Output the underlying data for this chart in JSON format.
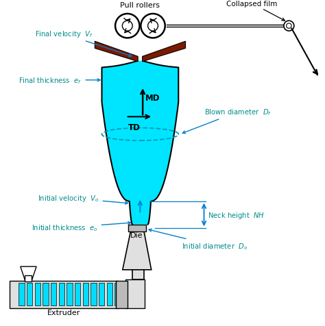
{
  "bg_color": "#ffffff",
  "cyan_color": "#00E5FF",
  "dark_red": "#7B1A00",
  "black": "#000000",
  "teal_label": "#008B8B",
  "blue_arrow": "#007FCC",
  "gray_light": "#E0E0E0",
  "gray_med": "#BBBBBB",
  "labels": {
    "pull_rollers": "Pull rollers",
    "collapsed_film": "Collapsed film",
    "final_velocity": "Final velocity  $V_f$",
    "final_thickness": "Final thickness  $e_f$",
    "MD": "MD",
    "TD": "TD",
    "blown_diameter": "Blown diameter  $D_f$",
    "initial_velocity": "Initial velocity  $V_o$",
    "initial_thickness": "Initial thickness  $e_o$",
    "die": "Die",
    "extruder": "Extruder",
    "neck_height": "Neck height  $NH$",
    "initial_diameter": "Initial diameter  $D_o$"
  },
  "figsize": [
    4.74,
    4.77
  ],
  "dpi": 100
}
